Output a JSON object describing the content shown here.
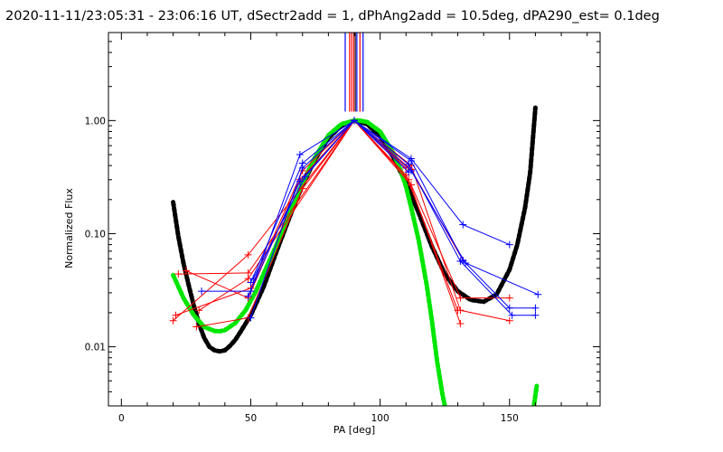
{
  "chart_data": {
    "type": "line",
    "title": "2020-11-11/23:05:31 - 23:06:16 UT, dSectr2add = 1, dPhAng2add = 10.5deg, dPA290_est=  0.1deg",
    "xlabel": "PA [deg]",
    "ylabel": "Normalized Flux",
    "xlim": [
      -5,
      185
    ],
    "ylim": [
      0.003,
      6.0
    ],
    "yscale": "log",
    "grid": false,
    "xticks": [
      {
        "value": 0,
        "label": "0"
      },
      {
        "value": 50,
        "label": "50"
      },
      {
        "value": 100,
        "label": "100"
      },
      {
        "value": 150,
        "label": "150"
      }
    ],
    "yticks": [
      {
        "value": 0.01,
        "label": "0.01"
      },
      {
        "value": 0.1,
        "label": "0.10"
      },
      {
        "value": 1.0,
        "label": "1.00"
      }
    ],
    "colors": {
      "red": "#ff0000",
      "blue": "#0000ff",
      "black": "#000000",
      "green": "#00e600"
    },
    "model_curves": [
      {
        "name": "black-model",
        "color": "#000000",
        "x": [
          20,
          22,
          24,
          26,
          28,
          30,
          32,
          34,
          36,
          38,
          40,
          42,
          44,
          46,
          48,
          50,
          55,
          60,
          65,
          70,
          75,
          80,
          85,
          90,
          95,
          100,
          105,
          110,
          115,
          120,
          125,
          130,
          135,
          140,
          145,
          150,
          153,
          156,
          158,
          160
        ],
        "y": [
          0.19,
          0.095,
          0.055,
          0.035,
          0.023,
          0.016,
          0.012,
          0.01,
          0.0093,
          0.0091,
          0.0093,
          0.0102,
          0.0115,
          0.0135,
          0.016,
          0.019,
          0.034,
          0.07,
          0.14,
          0.27,
          0.46,
          0.7,
          0.9,
          1.0,
          0.93,
          0.72,
          0.48,
          0.28,
          0.15,
          0.077,
          0.044,
          0.031,
          0.026,
          0.025,
          0.029,
          0.048,
          0.08,
          0.17,
          0.35,
          1.3
        ]
      },
      {
        "name": "green-model",
        "color": "#00e600",
        "x": [
          20,
          24,
          28,
          32,
          36,
          38,
          40,
          44,
          48,
          52,
          56,
          60,
          65,
          70,
          75,
          80,
          85,
          90,
          92,
          95,
          100,
          105,
          108,
          110,
          112,
          115,
          118,
          120,
          122,
          124,
          125
        ],
        "y": [
          0.043,
          0.027,
          0.019,
          0.015,
          0.0138,
          0.0137,
          0.014,
          0.0162,
          0.021,
          0.031,
          0.05,
          0.08,
          0.15,
          0.28,
          0.48,
          0.74,
          0.93,
          1.0,
          1.0,
          0.97,
          0.8,
          0.52,
          0.36,
          0.26,
          0.17,
          0.085,
          0.035,
          0.017,
          0.0075,
          0.0039,
          0.003
        ]
      },
      {
        "name": "green-model-tail",
        "color": "#00e600",
        "x": [
          159.5,
          160,
          160.5
        ],
        "y": [
          0.0031,
          0.0037,
          0.0045
        ]
      }
    ],
    "vertical_markers": [
      {
        "x": 86.5,
        "color": "#0000ff"
      },
      {
        "x": 88.2,
        "color": "#ff0000"
      },
      {
        "x": 89.0,
        "color": "#ff0000"
      },
      {
        "x": 89.8,
        "color": "#ff0000"
      },
      {
        "x": 90.4,
        "color": "#000000"
      },
      {
        "x": 91.0,
        "color": "#0000ff"
      },
      {
        "x": 92.2,
        "color": "#ff0000"
      },
      {
        "x": 93.4,
        "color": "#0000ff"
      }
    ],
    "vertical_marker_range": [
      1.2,
      6.0
    ],
    "series": [
      {
        "name": "red-1",
        "color": "#ff0000",
        "x": [
          20,
          49,
          90,
          112,
          131,
          150
        ],
        "y": [
          0.017,
          0.065,
          1.0,
          0.27,
          0.027,
          0.027
        ]
      },
      {
        "name": "red-2",
        "color": "#ff0000",
        "x": [
          22,
          49,
          90,
          112,
          131,
          150
        ],
        "y": [
          0.044,
          0.045,
          1.0,
          0.4,
          0.021,
          0.017
        ]
      },
      {
        "name": "red-3",
        "color": "#ff0000",
        "x": [
          30,
          49,
          90,
          111,
          131
        ],
        "y": [
          0.021,
          0.04,
          1.0,
          0.3,
          0.016
        ]
      },
      {
        "name": "red-4",
        "color": "#ff0000",
        "x": [
          21,
          50,
          70,
          90,
          110,
          130
        ],
        "y": [
          0.019,
          0.033,
          0.36,
          1.0,
          0.33,
          0.021
        ]
      },
      {
        "name": "red-5",
        "color": "#ff0000",
        "x": [
          25,
          49,
          69,
          90,
          112,
          132
        ],
        "y": [
          0.047,
          0.027,
          0.3,
          1.0,
          0.37,
          0.058
        ]
      },
      {
        "name": "red-6",
        "color": "#ff0000",
        "x": [
          29,
          49,
          70,
          90,
          110
        ],
        "y": [
          0.015,
          0.018,
          0.25,
          1.0,
          0.38
        ]
      },
      {
        "name": "blue-1",
        "color": "#0000ff",
        "x": [
          31,
          50,
          69,
          90,
          112,
          132,
          150
        ],
        "y": [
          0.031,
          0.031,
          0.5,
          1.0,
          0.46,
          0.12,
          0.08
        ]
      },
      {
        "name": "blue-2",
        "color": "#0000ff",
        "x": [
          50,
          70,
          90,
          112,
          132,
          150,
          160
        ],
        "y": [
          0.037,
          0.42,
          1.0,
          0.44,
          0.058,
          0.022,
          0.022
        ]
      },
      {
        "name": "blue-3",
        "color": "#0000ff",
        "x": [
          50,
          70,
          90,
          111,
          131,
          151,
          160
        ],
        "y": [
          0.018,
          0.38,
          1.0,
          0.41,
          0.057,
          0.019,
          0.019
        ]
      },
      {
        "name": "blue-4",
        "color": "#0000ff",
        "x": [
          51,
          71,
          90,
          112,
          133,
          161
        ],
        "y": [
          0.04,
          0.32,
          1.0,
          0.36,
          0.055,
          0.029
        ]
      },
      {
        "name": "blue-5",
        "color": "#0000ff",
        "x": [
          49,
          69,
          90,
          111
        ],
        "y": [
          0.028,
          0.29,
          1.0,
          0.35
        ]
      }
    ]
  }
}
